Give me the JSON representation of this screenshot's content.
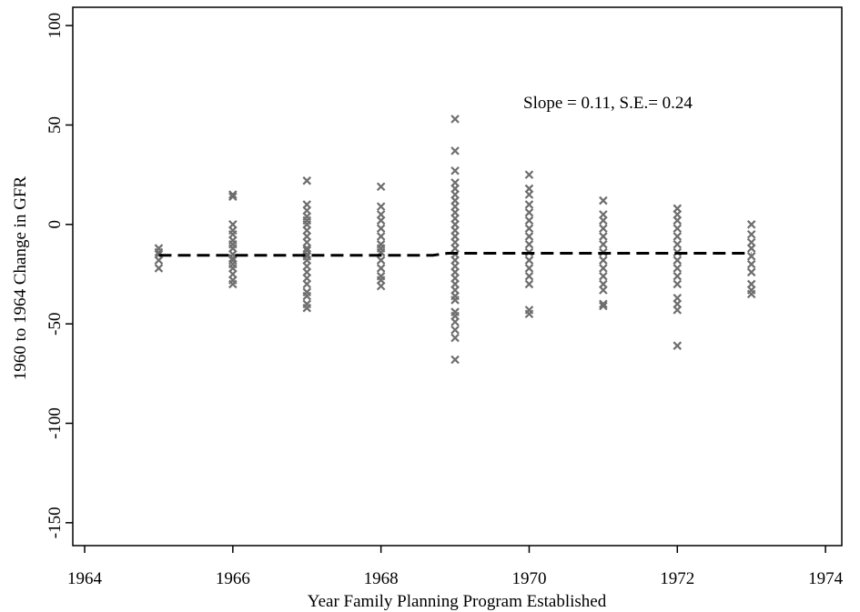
{
  "chart_data": {
    "type": "scatter",
    "annotation": "Slope = 0.11, S.E.= 0.24",
    "x_label": "Year Family Planning Program Established",
    "y_label": "1960 to 1964 Change in GFR",
    "xlim": [
      1963.84,
      1974.22
    ],
    "ylim": [
      -161.5,
      109.2
    ],
    "xticks": [
      1964,
      1966,
      1968,
      1970,
      1972,
      1974
    ],
    "yticks": [
      -150,
      -100,
      -50,
      0,
      50,
      100
    ],
    "grid": false,
    "series": [
      {
        "type": "scatter",
        "marker": "x",
        "color": "#6e6e6e",
        "x": [
          1965,
          1965,
          1965,
          1965,
          1965,
          1966,
          1966,
          1966,
          1966,
          1966,
          1966,
          1966,
          1966,
          1966,
          1966,
          1966,
          1966,
          1966,
          1966,
          1966,
          1966,
          1967,
          1967,
          1967,
          1967,
          1967,
          1967,
          1967,
          1967,
          1967,
          1967,
          1967,
          1967,
          1967,
          1967,
          1967,
          1967,
          1967,
          1967,
          1967,
          1967,
          1967,
          1967,
          1968,
          1968,
          1968,
          1968,
          1968,
          1968,
          1968,
          1968,
          1968,
          1968,
          1968,
          1968,
          1968,
          1968,
          1969,
          1969,
          1969,
          1969,
          1969,
          1969,
          1969,
          1969,
          1969,
          1969,
          1969,
          1969,
          1969,
          1969,
          1969,
          1969,
          1969,
          1969,
          1969,
          1969,
          1969,
          1969,
          1969,
          1969,
          1969,
          1969,
          1969,
          1969,
          1969,
          1969,
          1970,
          1970,
          1970,
          1970,
          1970,
          1970,
          1970,
          1970,
          1970,
          1970,
          1970,
          1970,
          1970,
          1970,
          1970,
          1970,
          1971,
          1971,
          1971,
          1971,
          1971,
          1971,
          1971,
          1971,
          1971,
          1971,
          1971,
          1971,
          1971,
          1971,
          1972,
          1972,
          1972,
          1972,
          1972,
          1972,
          1972,
          1972,
          1972,
          1972,
          1972,
          1972,
          1972,
          1972,
          1972,
          1973,
          1973,
          1973,
          1973,
          1973,
          1973,
          1973,
          1973,
          1973,
          1973
        ],
        "values": [
          -12,
          -15,
          -18,
          -22,
          -14,
          15,
          14,
          0,
          -5,
          -8,
          -10,
          -12,
          -15,
          -18,
          -20,
          -22,
          -25,
          -28,
          -30,
          -3,
          -17,
          22,
          10,
          7,
          4,
          2,
          0,
          -3,
          -6,
          -9,
          -12,
          -15,
          -18,
          -21,
          -24,
          -27,
          -30,
          -34,
          -36,
          -40,
          -42,
          -13,
          -16,
          19,
          9,
          5,
          2,
          -2,
          -6,
          -10,
          -14,
          -18,
          -22,
          -26,
          -28,
          -31,
          -12,
          53,
          37,
          27,
          21,
          18,
          15,
          12,
          9,
          6,
          3,
          0,
          -3,
          -6,
          -9,
          -12,
          -15,
          -18,
          -21,
          -24,
          -27,
          -30,
          -33,
          -36,
          -38,
          -46,
          -49,
          -53,
          -57,
          -68,
          -44,
          25,
          18,
          15,
          10,
          6,
          2,
          -2,
          -6,
          -10,
          -14,
          -18,
          -22,
          -26,
          -30,
          -43,
          -45,
          12,
          5,
          2,
          -2,
          -6,
          -10,
          -14,
          -18,
          -22,
          -26,
          -30,
          -33,
          -40,
          -41,
          8,
          5,
          2,
          -2,
          -6,
          -10,
          -14,
          -18,
          -22,
          -26,
          -30,
          -37,
          -40,
          -43,
          -61,
          0,
          -5,
          -9,
          -12,
          -16,
          -20,
          -24,
          -30,
          -33,
          -35
        ]
      },
      {
        "type": "line",
        "dashed": true,
        "color": "#000000",
        "x": [
          1965,
          1968.7,
          1968.9,
          1973
        ],
        "values": [
          -15.5,
          -15.5,
          -14.5,
          -14.5
        ]
      }
    ]
  }
}
